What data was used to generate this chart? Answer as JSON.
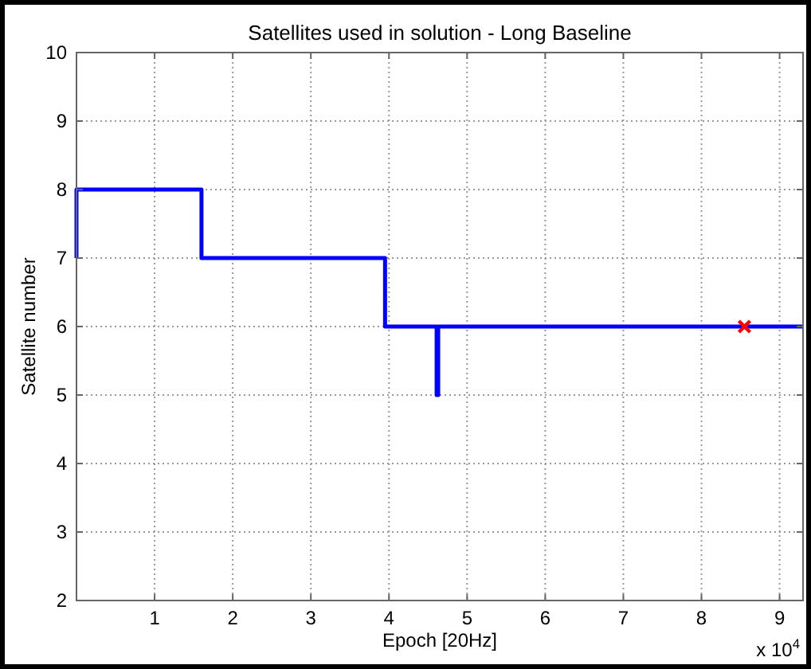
{
  "chart_data": {
    "type": "step",
    "title": "Satellites used in solution - Long Baseline",
    "xlabel": "Epoch [20Hz]",
    "ylabel": "Satellite number",
    "series": [
      {
        "color": "#0000ff",
        "x": [
          0,
          0,
          1.6,
          3.95,
          4.61,
          4.63,
          9.3
        ],
        "values": [
          7,
          8,
          7,
          6,
          5,
          6,
          6
        ]
      },
      {
        "type": "scatter",
        "color": "#ff0000",
        "marker": "cross",
        "x": [
          8.55
        ],
        "values": [
          6
        ]
      }
    ],
    "xlim": [
      0,
      9.3
    ],
    "xticks": [
      1,
      2,
      3,
      4,
      5,
      6,
      7,
      8,
      9
    ],
    "ylim": [
      2,
      10
    ],
    "yticks": [
      2,
      3,
      4,
      5,
      6,
      7,
      8,
      9,
      10
    ],
    "grid": true,
    "annotations": [
      "x 10$^{4}$"
    ]
  }
}
